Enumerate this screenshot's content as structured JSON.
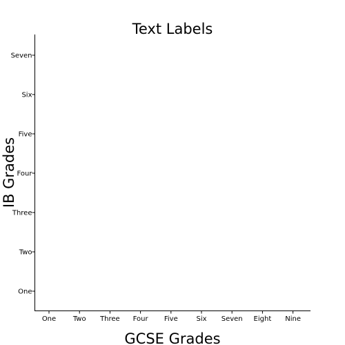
{
  "chart_data": {
    "type": "scatter",
    "title": "Text Labels",
    "xlabel": "GCSE Grades",
    "ylabel": "IB Grades",
    "x_categories": [
      "One",
      "Two",
      "Three",
      "Four",
      "Five",
      "Six",
      "Seven",
      "Eight",
      "Nine"
    ],
    "y_categories": [
      "One",
      "Two",
      "Three",
      "Four",
      "Five",
      "Six",
      "Seven"
    ],
    "series": [],
    "grid": false,
    "legend": "none",
    "axis_color": "#000000"
  }
}
